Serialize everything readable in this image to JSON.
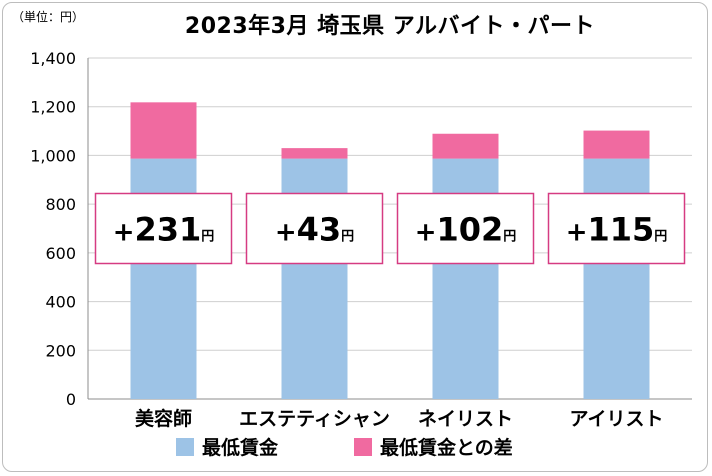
{
  "chart_data": {
    "type": "bar",
    "stacked": true,
    "title": "2023年3月 埼玉県 アルバイト・パート",
    "unit_label": "（単位：円）",
    "categories": [
      "美容師",
      "エステティシャン",
      "ネイリスト",
      "アイリスト"
    ],
    "series": [
      {
        "name": "最低賃金",
        "color": "#9dc3e6",
        "values": [
          987,
          987,
          987,
          987
        ]
      },
      {
        "name": "最低賃金との差",
        "color": "#f06aa0",
        "values": [
          231,
          43,
          102,
          115
        ]
      }
    ],
    "callouts": [
      {
        "sign": "+",
        "number": "231",
        "unit": "円"
      },
      {
        "sign": "+",
        "number": "43",
        "unit": "円"
      },
      {
        "sign": "+",
        "number": "102",
        "unit": "円"
      },
      {
        "sign": "+",
        "number": "115",
        "unit": "円"
      }
    ],
    "callout_level": 700,
    "ylim": [
      0,
      1400
    ],
    "yticks": [
      "0",
      "200",
      "400",
      "600",
      "800",
      "1,000",
      "1,200",
      "1,400"
    ],
    "grid": true,
    "legend_position": "bottom",
    "colors": {
      "grid": "#cfcfcf",
      "axis": "#8c8c8c",
      "callout_border": "#d63b82"
    }
  }
}
